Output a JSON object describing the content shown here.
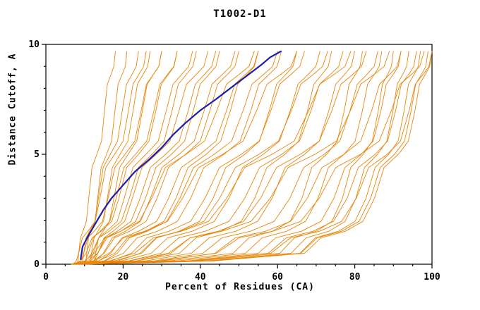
{
  "chart_data": {
    "type": "line",
    "title": "T1002-D1",
    "xlabel": "Percent of Residues (CA)",
    "ylabel": "Distance Cutoff, A",
    "xlim": [
      0,
      100
    ],
    "ylim": [
      0,
      10
    ],
    "x_major_ticks": [
      0,
      20,
      40,
      60,
      80,
      100
    ],
    "x_minor_step": 5,
    "y_major_ticks": [
      0,
      5,
      10
    ],
    "y_minor_step": 1,
    "grid": false,
    "legend": "none",
    "colors": {
      "models": "#e8860a",
      "highlight": "#1c1cb0",
      "axis": "#000000",
      "background": "#ffffff"
    },
    "highlight_curve": [
      [
        9,
        0.2
      ],
      [
        9.5,
        0.8
      ],
      [
        11,
        1.3
      ],
      [
        13,
        1.9
      ],
      [
        15,
        2.5
      ],
      [
        17,
        3
      ],
      [
        20,
        3.6
      ],
      [
        23,
        4.2
      ],
      [
        27,
        4.8
      ],
      [
        30,
        5.3
      ],
      [
        33,
        5.9
      ],
      [
        36,
        6.4
      ],
      [
        40,
        7
      ],
      [
        44,
        7.5
      ],
      [
        47,
        7.9
      ],
      [
        50,
        8.3
      ],
      [
        53,
        8.7
      ],
      [
        56,
        9.1
      ],
      [
        58,
        9.4
      ],
      [
        60,
        9.6
      ],
      [
        61,
        9.7
      ]
    ],
    "model_curves": [
      [
        [
          8,
          0
        ],
        [
          8.5,
          0.5
        ],
        [
          9.6,
          1.5
        ],
        [
          11.1,
          3
        ],
        [
          13.2,
          5
        ],
        [
          15.2,
          7
        ],
        [
          17,
          8.7
        ],
        [
          18,
          9.7
        ]
      ],
      [
        [
          10,
          0
        ],
        [
          10.6,
          0.5
        ],
        [
          11.7,
          1.5
        ],
        [
          13.4,
          3
        ],
        [
          15.7,
          5
        ],
        [
          17.9,
          7
        ],
        [
          19.9,
          8.7
        ],
        [
          21,
          9.7
        ]
      ],
      [
        [
          9,
          0
        ],
        [
          9.8,
          0.5
        ],
        [
          11.3,
          1.5
        ],
        [
          13.6,
          3
        ],
        [
          16.7,
          5
        ],
        [
          19.8,
          7
        ],
        [
          22.5,
          8.7
        ],
        [
          24,
          9.7
        ]
      ],
      [
        [
          11,
          0
        ],
        [
          11.8,
          0.5
        ],
        [
          13.5,
          1.5
        ],
        [
          15.9,
          3
        ],
        [
          19.2,
          5
        ],
        [
          22.6,
          7
        ],
        [
          25.4,
          8.7
        ],
        [
          27,
          9.7
        ]
      ],
      [
        [
          12,
          0
        ],
        [
          12.9,
          0.5
        ],
        [
          14.8,
          1.5
        ],
        [
          17.6,
          3
        ],
        [
          21.3,
          5
        ],
        [
          25,
          7
        ],
        [
          28.1,
          8.7
        ],
        [
          30,
          9.7
        ]
      ],
      [
        [
          7,
          0
        ],
        [
          8.5,
          0.5
        ],
        [
          10.9,
          1.5
        ],
        [
          14,
          3
        ],
        [
          17.8,
          5
        ],
        [
          21.4,
          7
        ],
        [
          24.3,
          8.7
        ],
        [
          26,
          9.7
        ]
      ],
      [
        [
          8,
          0
        ],
        [
          9.8,
          0.5
        ],
        [
          12.5,
          1.5
        ],
        [
          16.1,
          3
        ],
        [
          20.5,
          5
        ],
        [
          24.7,
          7
        ],
        [
          28.1,
          8.7
        ],
        [
          30,
          9.7
        ]
      ],
      [
        [
          9,
          0
        ],
        [
          11,
          0.5
        ],
        [
          14.1,
          1.5
        ],
        [
          18.2,
          3
        ],
        [
          23.2,
          5
        ],
        [
          28,
          7
        ],
        [
          31.8,
          8.7
        ],
        [
          34,
          9.7
        ]
      ],
      [
        [
          10,
          0
        ],
        [
          12.3,
          0.5
        ],
        [
          15.7,
          1.5
        ],
        [
          20.3,
          3
        ],
        [
          25.9,
          5
        ],
        [
          31.2,
          7
        ],
        [
          35.5,
          8.7
        ],
        [
          38,
          9.7
        ]
      ],
      [
        [
          11,
          0
        ],
        [
          13.5,
          0.5
        ],
        [
          17.4,
          1.5
        ],
        [
          22.4,
          3
        ],
        [
          28.6,
          5
        ],
        [
          34.5,
          7
        ],
        [
          39.3,
          8.7
        ],
        [
          42,
          9.7
        ]
      ],
      [
        [
          7,
          0
        ],
        [
          10.4,
          0.5
        ],
        [
          14.3,
          1.5
        ],
        [
          18.9,
          3
        ],
        [
          24,
          5
        ],
        [
          28.5,
          7
        ],
        [
          32,
          8.7
        ],
        [
          34,
          9.7
        ]
      ],
      [
        [
          8,
          0
        ],
        [
          11.9,
          0.5
        ],
        [
          16.4,
          1.5
        ],
        [
          21.6,
          3
        ],
        [
          27.5,
          5
        ],
        [
          32.7,
          7
        ],
        [
          36.7,
          8.7
        ],
        [
          39,
          9.7
        ]
      ],
      [
        [
          9,
          0
        ],
        [
          13.4,
          0.5
        ],
        [
          18.5,
          1.5
        ],
        [
          24.4,
          3
        ],
        [
          31,
          5
        ],
        [
          36.9,
          7
        ],
        [
          41.4,
          8.7
        ],
        [
          44,
          9.7
        ]
      ],
      [
        [
          10,
          0
        ],
        [
          14.9,
          0.5
        ],
        [
          20.6,
          1.5
        ],
        [
          27.1,
          3
        ],
        [
          34.5,
          5
        ],
        [
          41,
          7
        ],
        [
          46.1,
          8.7
        ],
        [
          49,
          9.7
        ]
      ],
      [
        [
          6.5,
          0
        ],
        [
          12.5,
          0.5
        ],
        [
          19.4,
          1.5
        ],
        [
          27.4,
          3
        ],
        [
          36.3,
          5
        ],
        [
          44.3,
          7
        ],
        [
          50.5,
          8.7
        ],
        [
          54,
          9.7
        ]
      ],
      [
        [
          7,
          0
        ],
        [
          13.4,
          0.5
        ],
        [
          19.4,
          1.5
        ],
        [
          25.8,
          3
        ],
        [
          32.5,
          5
        ],
        [
          38.2,
          7
        ],
        [
          42.6,
          8.7
        ],
        [
          45,
          9.7
        ]
      ],
      [
        [
          8,
          0
        ],
        [
          15.1,
          0.5
        ],
        [
          21.7,
          1.5
        ],
        [
          28.8,
          3
        ],
        [
          36.2,
          5
        ],
        [
          42.5,
          7
        ],
        [
          47.4,
          8.7
        ],
        [
          50,
          9.7
        ]
      ],
      [
        [
          9,
          0
        ],
        [
          16.8,
          0.5
        ],
        [
          24,
          1.5
        ],
        [
          31.8,
          3
        ],
        [
          39.9,
          5
        ],
        [
          46.8,
          7
        ],
        [
          52.1,
          8.7
        ],
        [
          55,
          9.7
        ]
      ],
      [
        [
          10,
          0
        ],
        [
          18.5,
          0.5
        ],
        [
          26.3,
          1.5
        ],
        [
          34.7,
          3
        ],
        [
          43.6,
          5
        ],
        [
          51.1,
          7
        ],
        [
          56.8,
          8.7
        ],
        [
          60,
          9.7
        ]
      ],
      [
        [
          6.5,
          0
        ],
        [
          16.4,
          0.5
        ],
        [
          25.6,
          1.5
        ],
        [
          35.4,
          3
        ],
        [
          45.8,
          5
        ],
        [
          54.6,
          7
        ],
        [
          61.3,
          8.7
        ],
        [
          65,
          9.7
        ]
      ],
      [
        [
          7,
          0
        ],
        [
          17.9,
          0.5
        ],
        [
          25.9,
          1.5
        ],
        [
          33.7,
          3
        ],
        [
          41.5,
          5
        ],
        [
          47.8,
          7
        ],
        [
          52.5,
          8.7
        ],
        [
          55,
          9.7
        ]
      ],
      [
        [
          8,
          0
        ],
        [
          20.1,
          0.5
        ],
        [
          28.9,
          1.5
        ],
        [
          37.5,
          3
        ],
        [
          46.1,
          5
        ],
        [
          53.1,
          7
        ],
        [
          58.2,
          8.7
        ],
        [
          61,
          9.7
        ]
      ],
      [
        [
          9,
          0
        ],
        [
          22.2,
          0.5
        ],
        [
          31.9,
          1.5
        ],
        [
          41.2,
          3
        ],
        [
          50.6,
          5
        ],
        [
          58.3,
          7
        ],
        [
          63.9,
          8.7
        ],
        [
          67,
          9.7
        ]
      ],
      [
        [
          10,
          0
        ],
        [
          24.4,
          0.5
        ],
        [
          34.8,
          1.5
        ],
        [
          45,
          3
        ],
        [
          55.2,
          5
        ],
        [
          63.6,
          7
        ],
        [
          69.7,
          8.7
        ],
        [
          73,
          9.7
        ]
      ],
      [
        [
          6.5,
          0
        ],
        [
          23,
          0.5
        ],
        [
          35.1,
          1.5
        ],
        [
          46.8,
          3
        ],
        [
          58.6,
          5
        ],
        [
          68.1,
          7
        ],
        [
          75.2,
          8.7
        ],
        [
          79,
          9.7
        ]
      ],
      [
        [
          7,
          0
        ],
        [
          24.8,
          0.5
        ],
        [
          34.5,
          1.5
        ],
        [
          43.3,
          3
        ],
        [
          51.5,
          5
        ],
        [
          57.9,
          7
        ],
        [
          62.5,
          8.7
        ],
        [
          65,
          9.7
        ]
      ],
      [
        [
          8,
          0
        ],
        [
          27.3,
          0.5
        ],
        [
          37.9,
          1.5
        ],
        [
          47.4,
          3
        ],
        [
          56.3,
          5
        ],
        [
          63.3,
          7
        ],
        [
          68.3,
          8.7
        ],
        [
          71,
          9.7
        ]
      ],
      [
        [
          9,
          0
        ],
        [
          29.8,
          0.5
        ],
        [
          41.3,
          1.5
        ],
        [
          51.5,
          3
        ],
        [
          61.1,
          5
        ],
        [
          68.7,
          7
        ],
        [
          74.1,
          8.7
        ],
        [
          77,
          9.7
        ]
      ],
      [
        [
          10,
          0
        ],
        [
          32.4,
          0.5
        ],
        [
          44.6,
          1.5
        ],
        [
          55.6,
          3
        ],
        [
          65.9,
          5
        ],
        [
          74.1,
          7
        ],
        [
          79.9,
          8.7
        ],
        [
          83,
          9.7
        ]
      ],
      [
        [
          6.5,
          0
        ],
        [
          31.8,
          0.5
        ],
        [
          45.6,
          1.5
        ],
        [
          58.1,
          3
        ],
        [
          69.7,
          5
        ],
        [
          78.9,
          7
        ],
        [
          85.5,
          8.7
        ],
        [
          89,
          9.7
        ]
      ],
      [
        [
          7,
          0
        ],
        [
          34.6,
          0.5
        ],
        [
          45.3,
          1.5
        ],
        [
          54.1,
          3
        ],
        [
          61.9,
          5
        ],
        [
          67.8,
          7
        ],
        [
          71.8,
          8.7
        ],
        [
          74,
          9.7
        ]
      ],
      [
        [
          8,
          0
        ],
        [
          37.7,
          0.5
        ],
        [
          49.2,
          1.5
        ],
        [
          58.6,
          3
        ],
        [
          67,
          5
        ],
        [
          73.3,
          7
        ],
        [
          77.7,
          8.7
        ],
        [
          80,
          9.7
        ]
      ],
      [
        [
          9,
          0
        ],
        [
          40.7,
          0.5
        ],
        [
          53,
          1.5
        ],
        [
          63.2,
          3
        ],
        [
          72.1,
          5
        ],
        [
          78.8,
          7
        ],
        [
          83.5,
          8.7
        ],
        [
          86,
          9.7
        ]
      ],
      [
        [
          10,
          0
        ],
        [
          43.8,
          0.5
        ],
        [
          56.9,
          1.5
        ],
        [
          67.7,
          3
        ],
        [
          77.2,
          5
        ],
        [
          84.4,
          7
        ],
        [
          89.4,
          8.7
        ],
        [
          92,
          9.7
        ]
      ],
      [
        [
          6.5,
          0
        ],
        [
          44.2,
          0.5
        ],
        [
          58.8,
          1.5
        ],
        [
          70.8,
          3
        ],
        [
          81.5,
          5
        ],
        [
          89.5,
          7
        ],
        [
          95.1,
          8.7
        ],
        [
          98,
          9.7
        ]
      ],
      [
        [
          7,
          0
        ],
        [
          48.5,
          0.5
        ],
        [
          58.7,
          1.5
        ],
        [
          66.3,
          3
        ],
        [
          72.7,
          5
        ],
        [
          77.3,
          7
        ],
        [
          80.4,
          8.7
        ],
        [
          82,
          9.7
        ]
      ],
      [
        [
          8,
          0
        ],
        [
          51.7,
          0.5
        ],
        [
          62.4,
          1.5
        ],
        [
          70.5,
          3
        ],
        [
          77.2,
          5
        ],
        [
          82,
          7
        ],
        [
          85.3,
          8.7
        ],
        [
          87,
          9.7
        ]
      ],
      [
        [
          9,
          0
        ],
        [
          55,
          0.5
        ],
        [
          66.2,
          1.5
        ],
        [
          74.6,
          3
        ],
        [
          81.7,
          5
        ],
        [
          86.8,
          7
        ],
        [
          90.2,
          8.7
        ],
        [
          92,
          9.7
        ]
      ],
      [
        [
          10,
          0
        ],
        [
          57.6,
          0.5
        ],
        [
          69.2,
          1.5
        ],
        [
          78,
          3
        ],
        [
          85.3,
          5
        ],
        [
          90.6,
          7
        ],
        [
          94.2,
          8.7
        ],
        [
          96,
          9.7
        ]
      ],
      [
        [
          6.5,
          0
        ],
        [
          58.3,
          0.5
        ],
        [
          70.9,
          1.5
        ],
        [
          80.4,
          3
        ],
        [
          88.4,
          5
        ],
        [
          94.1,
          7
        ],
        [
          98,
          8.7
        ],
        [
          100,
          9.7
        ]
      ],
      [
        [
          8,
          0
        ],
        [
          60.6,
          0.5
        ],
        [
          70,
          1.5
        ],
        [
          76.8,
          3
        ],
        [
          82.2,
          5
        ],
        [
          86.1,
          7
        ],
        [
          88.7,
          8.7
        ],
        [
          90,
          9.7
        ]
      ],
      [
        [
          9,
          0
        ],
        [
          63.5,
          0.5
        ],
        [
          73.3,
          1.5
        ],
        [
          80.3,
          3
        ],
        [
          85.9,
          5
        ],
        [
          89.9,
          7
        ],
        [
          92.6,
          8.7
        ],
        [
          94,
          9.7
        ]
      ],
      [
        [
          10,
          0
        ],
        [
          65.8,
          0.5
        ],
        [
          75.8,
          1.5
        ],
        [
          82.9,
          3
        ],
        [
          88.8,
          5
        ],
        [
          92.8,
          7
        ],
        [
          95.6,
          8.7
        ],
        [
          97,
          9.7
        ]
      ],
      [
        [
          7,
          0
        ],
        [
          66,
          0.5
        ],
        [
          76.6,
          1.5
        ],
        [
          84.1,
          3
        ],
        [
          90.3,
          5
        ],
        [
          94.6,
          7
        ],
        [
          97.5,
          8.7
        ],
        [
          99,
          9.7
        ]
      ],
      [
        [
          8,
          0
        ],
        [
          67,
          0.5
        ],
        [
          77.6,
          1.5
        ],
        [
          85.1,
          3
        ],
        [
          91.3,
          5
        ],
        [
          95.6,
          7
        ],
        [
          98.5,
          8.7
        ],
        [
          100,
          9.7
        ]
      ]
    ]
  }
}
